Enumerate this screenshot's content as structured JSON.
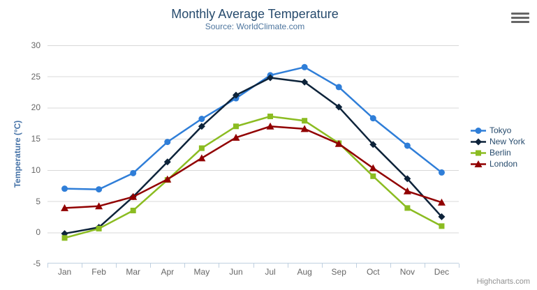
{
  "header": {
    "title": "Monthly Average Temperature",
    "subtitle": "Source: WorldClimate.com"
  },
  "export_menu": {
    "icon": "hamburger-menu"
  },
  "credits": {
    "label": "Highcharts.com"
  },
  "chart_data": {
    "type": "line",
    "title": "Monthly Average Temperature",
    "subtitle": "Source: WorldClimate.com",
    "xlabel": "",
    "ylabel": "Temperature (°C)",
    "categories": [
      "Jan",
      "Feb",
      "Mar",
      "Apr",
      "May",
      "Jun",
      "Jul",
      "Aug",
      "Sep",
      "Oct",
      "Nov",
      "Dec"
    ],
    "ylim": [
      -5,
      30
    ],
    "yticks": [
      -5,
      0,
      5,
      10,
      15,
      20,
      25,
      30
    ],
    "grid": "horizontal",
    "legend_position": "right",
    "series": [
      {
        "name": "Tokyo",
        "color": "#2f7ed8",
        "marker": "circle",
        "values": [
          7.0,
          6.9,
          9.5,
          14.5,
          18.2,
          21.5,
          25.2,
          26.5,
          23.3,
          18.3,
          13.9,
          9.6
        ]
      },
      {
        "name": "New York",
        "color": "#0d233a",
        "marker": "diamond",
        "values": [
          -0.2,
          0.8,
          5.7,
          11.3,
          17.0,
          22.0,
          24.8,
          24.1,
          20.1,
          14.1,
          8.6,
          2.5
        ]
      },
      {
        "name": "Berlin",
        "color": "#8bbc21",
        "marker": "square",
        "values": [
          -0.9,
          0.6,
          3.5,
          8.4,
          13.5,
          17.0,
          18.6,
          17.9,
          14.3,
          9.0,
          3.9,
          1.0
        ]
      },
      {
        "name": "London",
        "color": "#910000",
        "marker": "triangle",
        "values": [
          3.9,
          4.2,
          5.7,
          8.5,
          11.9,
          15.2,
          17.0,
          16.6,
          14.2,
          10.3,
          6.6,
          4.8
        ]
      }
    ]
  },
  "colors": {
    "background": "#ffffff",
    "title": "#274b6d",
    "subtitle": "#4d759e",
    "axis_title": "#4572a7",
    "axis_labels": "#666666",
    "gridline": "#d8d8d8",
    "axis_line": "#c0d0e0",
    "legend_text": "#274b6d",
    "credits_text": "#909090",
    "export_icon": "#666666"
  }
}
